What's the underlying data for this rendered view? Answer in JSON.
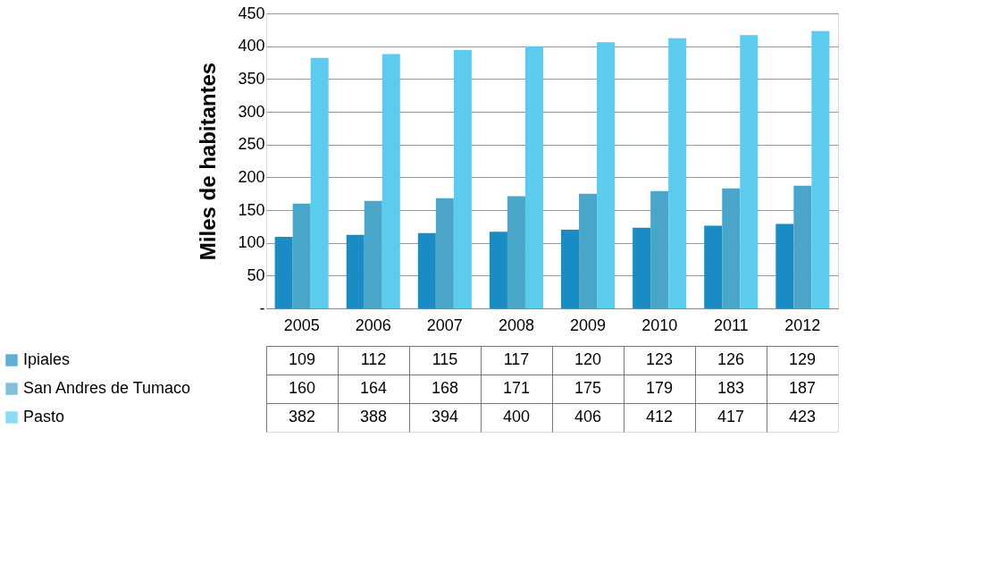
{
  "chart_data": {
    "type": "bar",
    "ylabel": "Miles de habitantes",
    "categories": [
      "2005",
      "2006",
      "2007",
      "2008",
      "2009",
      "2010",
      "2011",
      "2012"
    ],
    "series": [
      {
        "name": "Ipiales",
        "color": "#1a8cc4",
        "values": [
          109,
          112,
          115,
          117,
          120,
          123,
          126,
          129
        ]
      },
      {
        "name": "San Andres de Tumaco",
        "color": "#4aa6c9",
        "values": [
          160,
          164,
          168,
          171,
          175,
          179,
          183,
          187
        ]
      },
      {
        "name": "Pasto",
        "color": "#5ccbf0",
        "values": [
          382,
          388,
          394,
          400,
          406,
          412,
          417,
          423
        ]
      }
    ],
    "ylim": [
      0,
      450
    ],
    "yticks": [
      {
        "value": 0,
        "label": "-"
      },
      50,
      100,
      150,
      200,
      250,
      300,
      350,
      400,
      450
    ],
    "grid": "y",
    "legend": "bottom",
    "data_labels": true
  }
}
